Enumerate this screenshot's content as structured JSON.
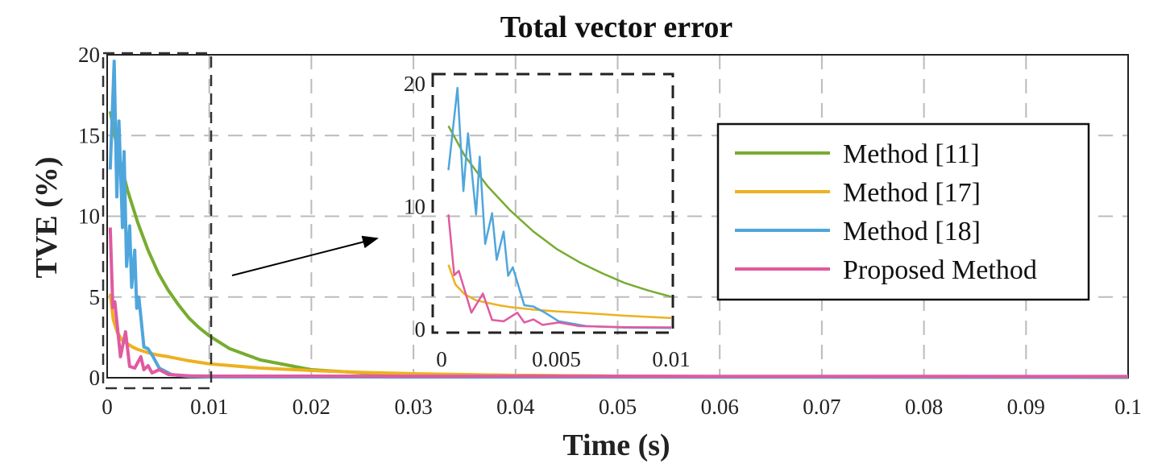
{
  "chart_data": {
    "type": "line",
    "title": "Total vector error",
    "xlabel": "Time (s)",
    "ylabel": "TVE (%)",
    "xlim": [
      0,
      0.1
    ],
    "ylim": [
      0,
      20
    ],
    "xticks": [
      "0",
      "0.01",
      "0.02",
      "0.03",
      "0.04",
      "0.05",
      "0.06",
      "0.07",
      "0.08",
      "0.09",
      "0.1"
    ],
    "yticks": [
      "0",
      "5",
      "10",
      "15",
      "20"
    ],
    "grid": true,
    "legend_position": "top-right",
    "series": [
      {
        "name": "Method [11]",
        "color": "#77ac30",
        "x": [
          0.0003,
          0.001,
          0.002,
          0.003,
          0.004,
          0.005,
          0.006,
          0.007,
          0.008,
          0.009,
          0.01,
          0.012,
          0.015,
          0.02,
          0.025,
          0.03,
          0.04,
          0.05,
          0.06,
          0.08,
          0.1
        ],
        "y": [
          16.5,
          14.1,
          11.6,
          9.6,
          7.9,
          6.5,
          5.4,
          4.5,
          3.7,
          3.1,
          2.6,
          1.8,
          1.1,
          0.5,
          0.3,
          0.22,
          0.15,
          0.1,
          0.07,
          0.03,
          0.02
        ]
      },
      {
        "name": "Method [17]",
        "color": "#edb120",
        "x": [
          0.0003,
          0.0006,
          0.001,
          0.0015,
          0.002,
          0.0025,
          0.003,
          0.004,
          0.005,
          0.006,
          0.008,
          0.01,
          0.015,
          0.02,
          0.025,
          0.03,
          0.04,
          0.05,
          0.06,
          0.08,
          0.1
        ],
        "y": [
          5.2,
          3.6,
          2.8,
          2.3,
          2.1,
          1.9,
          1.75,
          1.55,
          1.4,
          1.3,
          1.05,
          0.86,
          0.6,
          0.45,
          0.33,
          0.25,
          0.15,
          0.1,
          0.07,
          0.04,
          0.02
        ]
      },
      {
        "name": "Method [18]",
        "color": "#4fa6dc",
        "x": [
          0.0003,
          0.00069,
          0.00095,
          0.00115,
          0.0015,
          0.00166,
          0.0019,
          0.0022,
          0.0024,
          0.0027,
          0.0029,
          0.0031,
          0.0036,
          0.004,
          0.0045,
          0.0051,
          0.0057,
          0.0063,
          0.008,
          0.01,
          0.1
        ],
        "y": [
          12.9,
          19.6,
          11.2,
          15.9,
          9.3,
          14.0,
          6.9,
          9.4,
          5.6,
          7.9,
          4.3,
          5.0,
          1.9,
          1.8,
          1.3,
          0.6,
          0.4,
          0.2,
          0.08,
          0.05,
          0.03
        ]
      },
      {
        "name": "Proposed Method",
        "color": "#e05aa0",
        "x": [
          0.0003,
          0.00055,
          0.00075,
          0.0013,
          0.0018,
          0.0022,
          0.0027,
          0.0033,
          0.0036,
          0.004,
          0.0044,
          0.0051,
          0.006,
          0.008,
          0.01,
          0.1
        ],
        "y": [
          9.3,
          4.35,
          4.7,
          1.3,
          2.85,
          0.7,
          0.6,
          1.3,
          0.5,
          0.75,
          0.3,
          0.5,
          0.2,
          0.12,
          0.1,
          0.08
        ]
      }
    ],
    "inset": {
      "xlim": [
        0,
        0.01
      ],
      "ylim": [
        0,
        20
      ],
      "xticks": [
        "0",
        "0.005",
        "0.01"
      ],
      "yticks": [
        "0",
        "10",
        "20"
      ]
    }
  }
}
